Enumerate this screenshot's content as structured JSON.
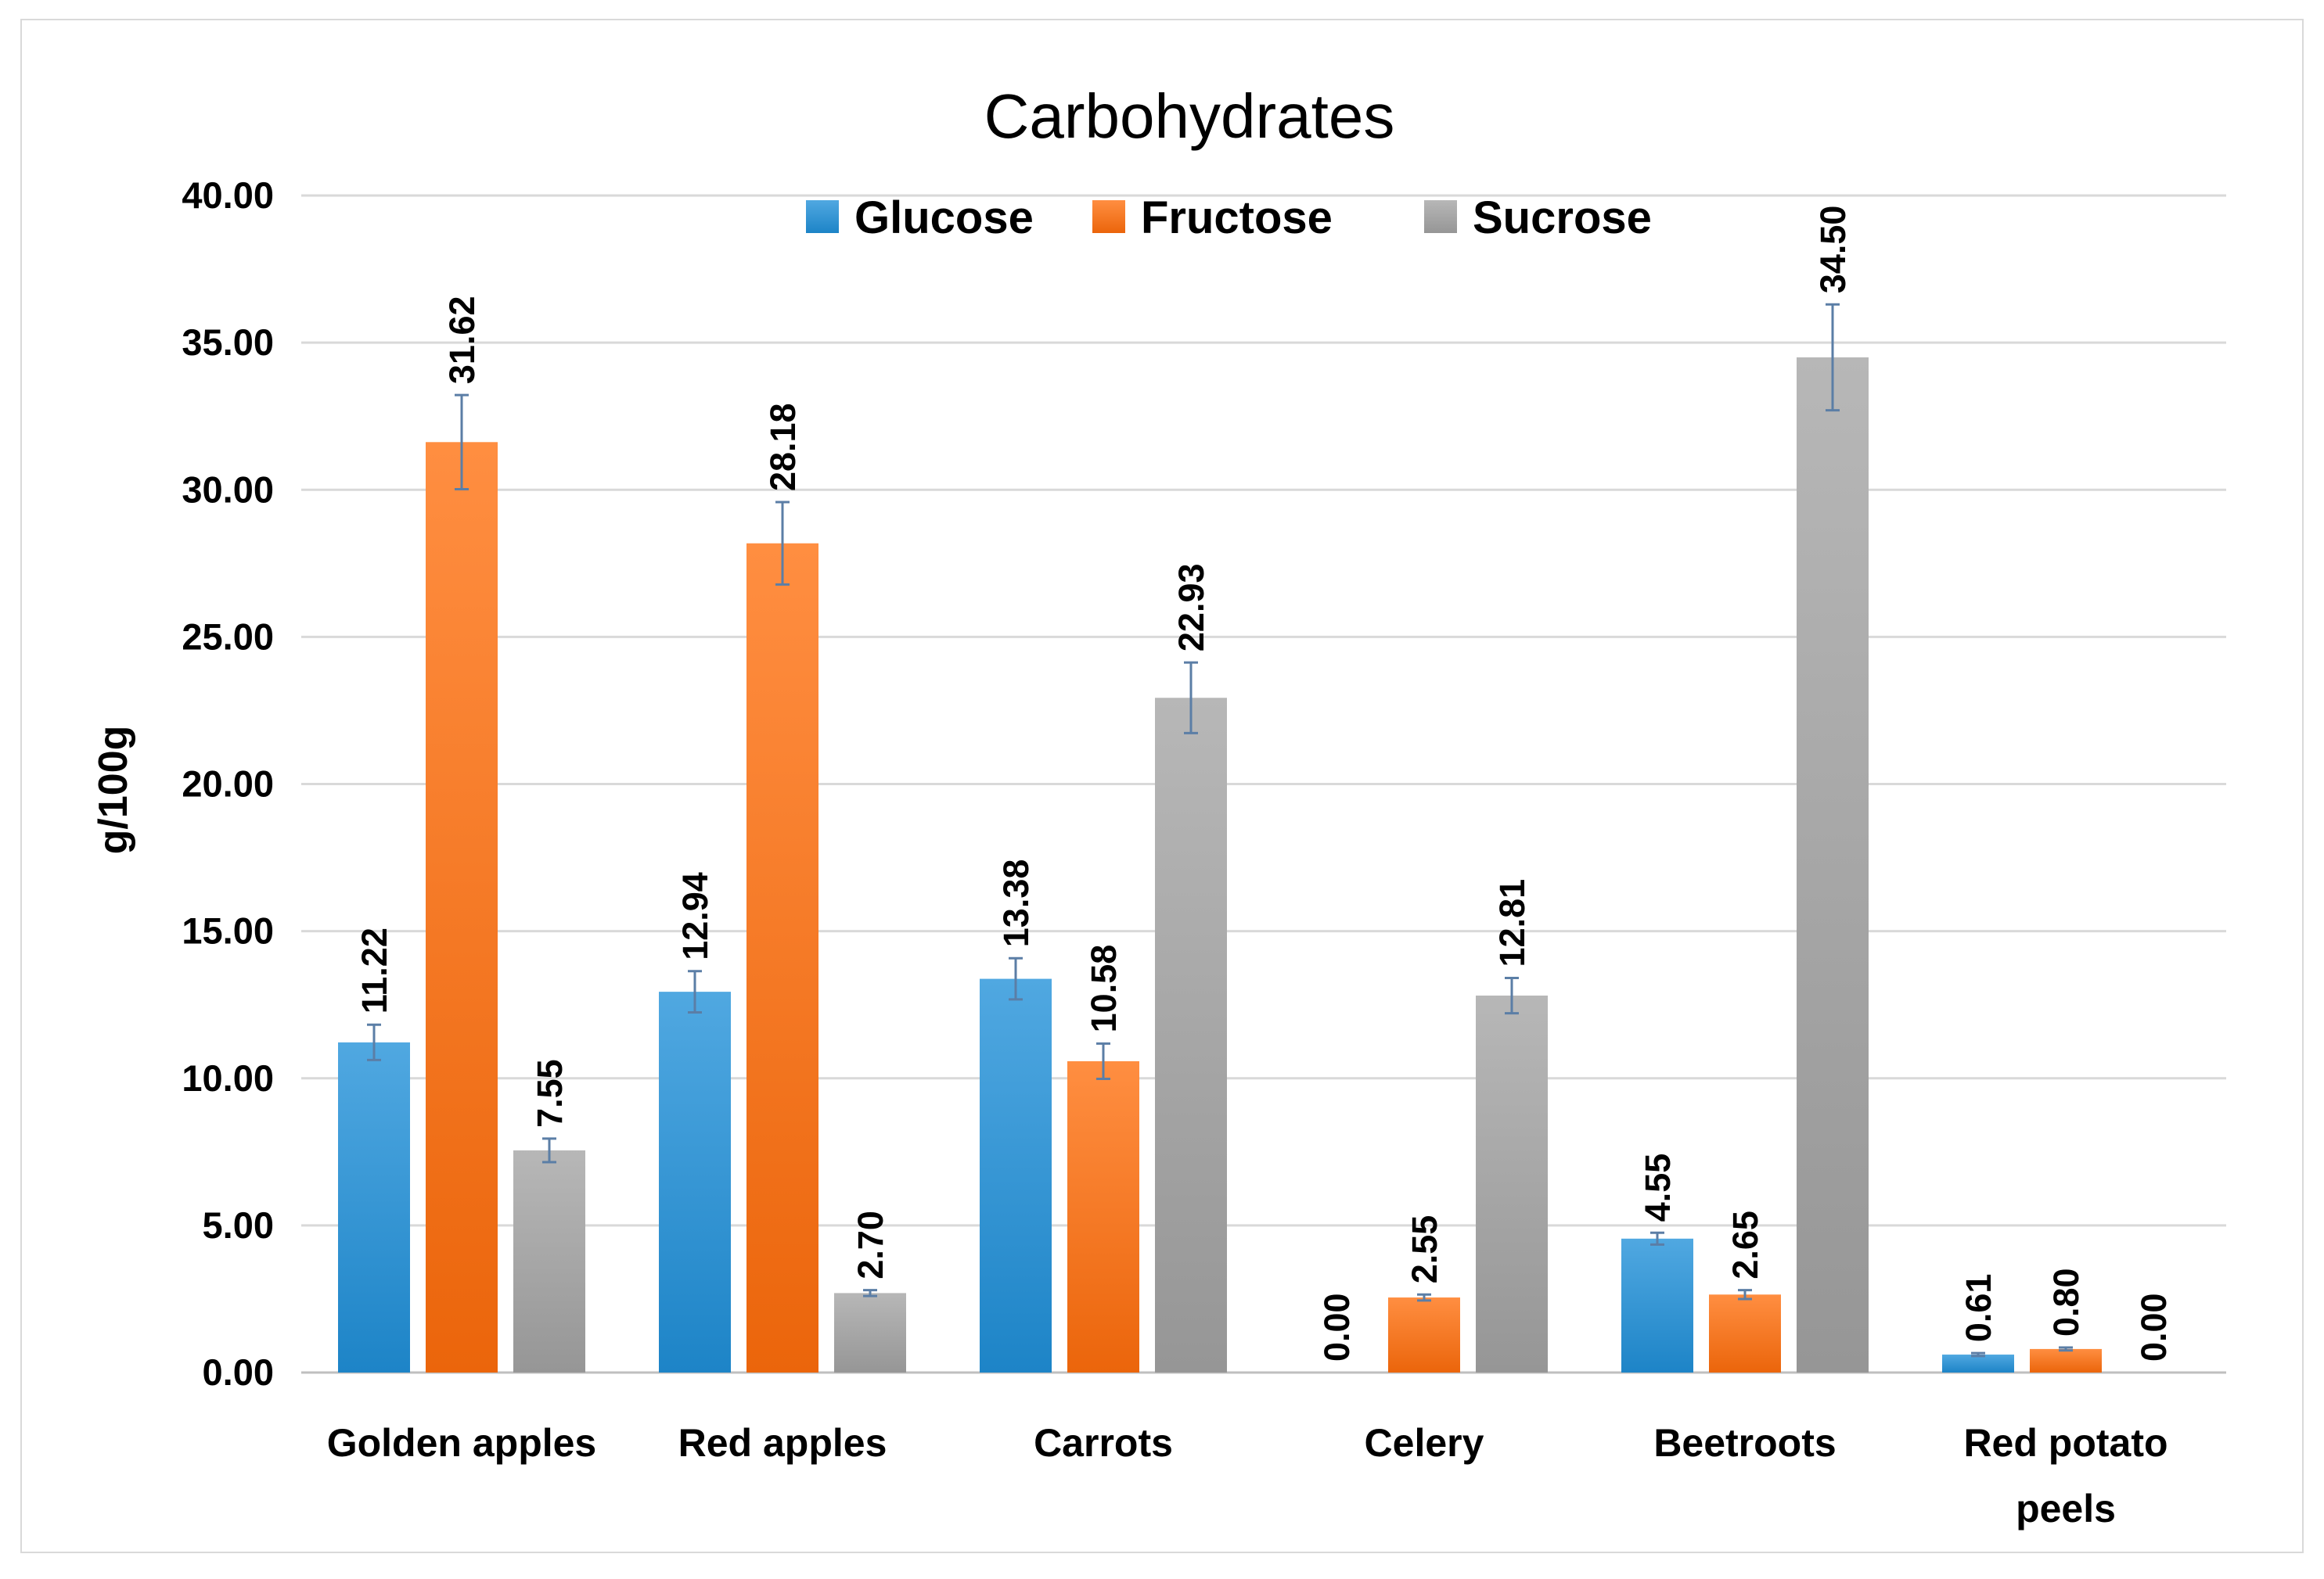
{
  "chart_data": {
    "type": "bar",
    "title": "Carbohydrates",
    "xlabel": "",
    "ylabel": "g/100g",
    "ylim": [
      0,
      40
    ],
    "yticks": [
      "0.00",
      "5.00",
      "10.00",
      "15.00",
      "20.00",
      "25.00",
      "30.00",
      "35.00",
      "40.00"
    ],
    "grid": true,
    "legend_position": "top-center",
    "categories": [
      [
        "Golden apples"
      ],
      [
        "Red apples"
      ],
      [
        "Carrots"
      ],
      [
        "Celery"
      ],
      [
        "Beetroots"
      ],
      [
        "Red potato",
        "peels"
      ]
    ],
    "series": [
      {
        "name": "Glucose",
        "color": "#1f8fd8",
        "values": [
          11.22,
          12.94,
          13.38,
          0.0,
          4.55,
          0.61
        ],
        "labels": [
          "11.22",
          "12.94",
          "13.38",
          "0.00",
          "4.55",
          "0.61"
        ],
        "errors": [
          0.6,
          0.7,
          0.7,
          0.0,
          0.2,
          0.05
        ]
      },
      {
        "name": "Fructose",
        "color": "#ff6e0c",
        "values": [
          31.62,
          28.18,
          10.58,
          2.55,
          2.65,
          0.8
        ],
        "labels": [
          "31.62",
          "28.18",
          "10.58",
          "2.55",
          "2.65",
          "0.80"
        ],
        "errors": [
          1.6,
          1.4,
          0.6,
          0.1,
          0.15,
          0.05
        ]
      },
      {
        "name": "Sucrose",
        "color": "#a3a3a3",
        "values": [
          7.55,
          2.7,
          22.93,
          12.81,
          34.5,
          0.0
        ],
        "labels": [
          "7.55",
          "2.70",
          "22.93",
          "12.81",
          "34.50",
          "0.00"
        ],
        "errors": [
          0.4,
          0.1,
          1.2,
          0.6,
          1.8,
          0.0
        ]
      }
    ]
  }
}
